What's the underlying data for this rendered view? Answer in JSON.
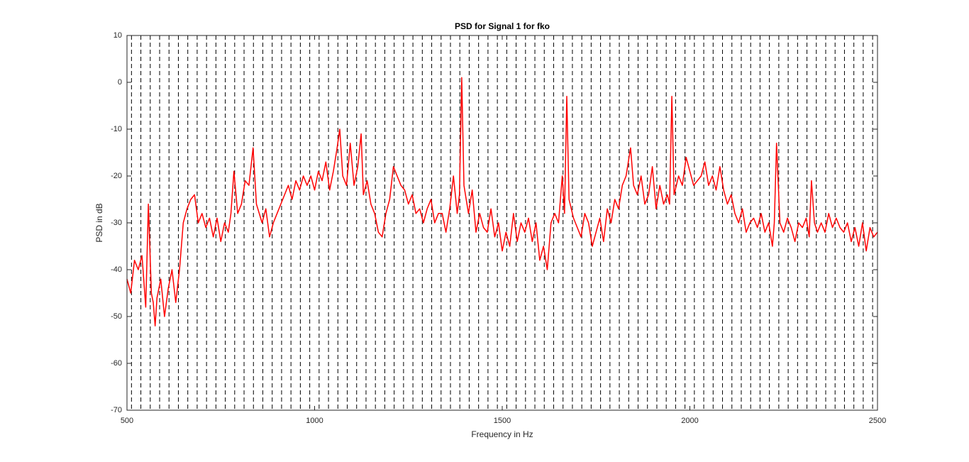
{
  "chart_data": {
    "type": "line",
    "title": "PSD for Signal 1 for fko",
    "xlabel": "Frequency in Hz",
    "ylabel": "PSD in dB",
    "xlim": [
      500,
      2500
    ],
    "ylim": [
      -70,
      10
    ],
    "xticks": [
      500,
      1000,
      1500,
      2000,
      2500
    ],
    "yticks": [
      -70,
      -60,
      -50,
      -40,
      -30,
      -20,
      -10,
      0,
      10
    ],
    "vlines": [
      512,
      537,
      562,
      587,
      612,
      637,
      662,
      687,
      712,
      737,
      762,
      787,
      812,
      837,
      862,
      887,
      912,
      937,
      962,
      987,
      1012,
      1037,
      1062,
      1087,
      1112,
      1137,
      1162,
      1187,
      1212,
      1237,
      1262,
      1287,
      1312,
      1337,
      1362,
      1387,
      1412,
      1437,
      1462,
      1487,
      1512,
      1537,
      1562,
      1587,
      1612,
      1637,
      1662,
      1687,
      1712,
      1737,
      1762,
      1787,
      1812,
      1837,
      1862,
      1887,
      1912,
      1937,
      1962,
      1987,
      2012,
      2037,
      2062,
      2087,
      2112,
      2137,
      2162,
      2187,
      2212,
      2237,
      2262,
      2287,
      2312,
      2337,
      2362,
      2387,
      2412,
      2437,
      2462,
      2487
    ],
    "vline_color": "#000000",
    "x": [
      500,
      510,
      520,
      530,
      540,
      550,
      557,
      565,
      570,
      575,
      580,
      590,
      600,
      610,
      620,
      630,
      640,
      650,
      660,
      670,
      680,
      690,
      700,
      710,
      720,
      730,
      740,
      750,
      760,
      770,
      777,
      785,
      795,
      805,
      815,
      825,
      836,
      845,
      860,
      870,
      880,
      890,
      900,
      910,
      920,
      930,
      940,
      950,
      960,
      970,
      980,
      990,
      1000,
      1010,
      1020,
      1030,
      1040,
      1050,
      1060,
      1067,
      1075,
      1085,
      1095,
      1105,
      1115,
      1124,
      1130,
      1140,
      1150,
      1160,
      1170,
      1180,
      1190,
      1200,
      1210,
      1220,
      1230,
      1240,
      1250,
      1260,
      1270,
      1280,
      1290,
      1300,
      1310,
      1320,
      1330,
      1340,
      1350,
      1360,
      1370,
      1380,
      1386,
      1392,
      1398,
      1410,
      1420,
      1430,
      1440,
      1450,
      1460,
      1470,
      1480,
      1490,
      1500,
      1510,
      1520,
      1530,
      1540,
      1550,
      1560,
      1570,
      1580,
      1590,
      1600,
      1610,
      1620,
      1630,
      1640,
      1650,
      1660,
      1666,
      1672,
      1678,
      1690,
      1700,
      1710,
      1720,
      1730,
      1740,
      1750,
      1760,
      1770,
      1780,
      1790,
      1800,
      1810,
      1820,
      1830,
      1842,
      1850,
      1860,
      1870,
      1880,
      1890,
      1900,
      1910,
      1920,
      1930,
      1940,
      1946,
      1952,
      1958,
      1970,
      1980,
      1990,
      2000,
      2010,
      2020,
      2030,
      2040,
      2050,
      2060,
      2070,
      2080,
      2090,
      2100,
      2110,
      2120,
      2130,
      2140,
      2150,
      2160,
      2170,
      2180,
      2190,
      2200,
      2210,
      2220,
      2225,
      2231,
      2240,
      2250,
      2260,
      2270,
      2280,
      2290,
      2300,
      2310,
      2318,
      2324,
      2332,
      2340,
      2350,
      2360,
      2370,
      2380,
      2390,
      2400,
      2410,
      2420,
      2430,
      2440,
      2450,
      2460,
      2470,
      2480,
      2490,
      2500
    ],
    "series": [
      {
        "color": "#ff0000",
        "values": [
          -42,
          -45,
          -38,
          -40,
          -37,
          -48,
          -26,
          -45,
          -47,
          -52,
          -46,
          -42,
          -50,
          -44,
          -40,
          -47,
          -40,
          -30,
          -27,
          -25,
          -24,
          -30,
          -28,
          -31,
          -29,
          -33,
          -29,
          -34,
          -30,
          -32,
          -28,
          -19,
          -28,
          -26,
          -21,
          -22,
          -14,
          -26,
          -30,
          -27,
          -33,
          -30,
          -28,
          -26,
          -24,
          -22,
          -25,
          -21,
          -23,
          -20,
          -22,
          -20,
          -23,
          -19,
          -21,
          -17,
          -23,
          -19,
          -14,
          -10,
          -20,
          -22,
          -13,
          -22,
          -18,
          -11,
          -24,
          -21,
          -26,
          -28,
          -32,
          -33,
          -28,
          -25,
          -18,
          -20,
          -22,
          -23,
          -26,
          -24,
          -28,
          -27,
          -30,
          -27,
          -25,
          -30,
          -28,
          -28,
          -32,
          -27,
          -20,
          -28,
          -24,
          1,
          -22,
          -28,
          -23,
          -32,
          -28,
          -31,
          -32,
          -27,
          -33,
          -30,
          -36,
          -32,
          -35,
          -28,
          -34,
          -30,
          -32,
          -29,
          -34,
          -30,
          -38,
          -35,
          -40,
          -30,
          -28,
          -30,
          -20,
          -28,
          -3,
          -25,
          -29,
          -31,
          -33,
          -28,
          -30,
          -35,
          -32,
          -29,
          -34,
          -27,
          -30,
          -25,
          -27,
          -22,
          -20,
          -14,
          -22,
          -24,
          -20,
          -26,
          -24,
          -18,
          -27,
          -22,
          -26,
          -24,
          -26,
          -3,
          -24,
          -20,
          -22,
          -16,
          -19,
          -22,
          -21,
          -20,
          -17,
          -22,
          -20,
          -23,
          -18,
          -23,
          -26,
          -24,
          -28,
          -30,
          -27,
          -32,
          -30,
          -29,
          -31,
          -28,
          -32,
          -30,
          -35,
          -30,
          -13,
          -30,
          -32,
          -29,
          -31,
          -34,
          -30,
          -31,
          -29,
          -33,
          -21,
          -30,
          -32,
          -30,
          -32,
          -28,
          -31,
          -29,
          -31,
          -32,
          -30,
          -34,
          -31,
          -35,
          -30,
          -36,
          -31,
          -33,
          -32
        ]
      }
    ]
  }
}
